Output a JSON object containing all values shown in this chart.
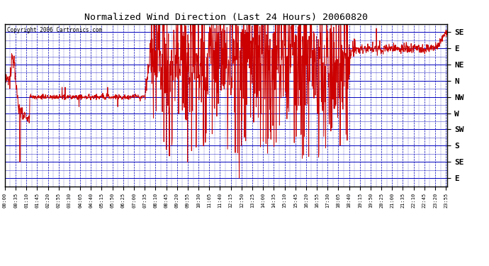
{
  "title": "Normalized Wind Direction (Last 24 Hours) 20060820",
  "copyright": "Copyright 2006 Cartronics.com",
  "bg_color": "#ffffff",
  "plot_bg_color": "#ffffff",
  "line_color": "#cc0000",
  "grid_major_color": "#0000bb",
  "grid_minor_color": "#4444cc",
  "border_color": "#000000",
  "title_color": "#000000",
  "ytick_labels": [
    "SE",
    "E",
    "NE",
    "N",
    "NW",
    "W",
    "SW",
    "S",
    "SE",
    "E"
  ],
  "ytick_values": [
    9,
    8,
    7,
    6,
    5,
    4,
    3,
    2,
    1,
    0
  ],
  "ylim": [
    -0.5,
    9.5
  ],
  "figsize": [
    6.9,
    3.75
  ],
  "dpi": 100
}
